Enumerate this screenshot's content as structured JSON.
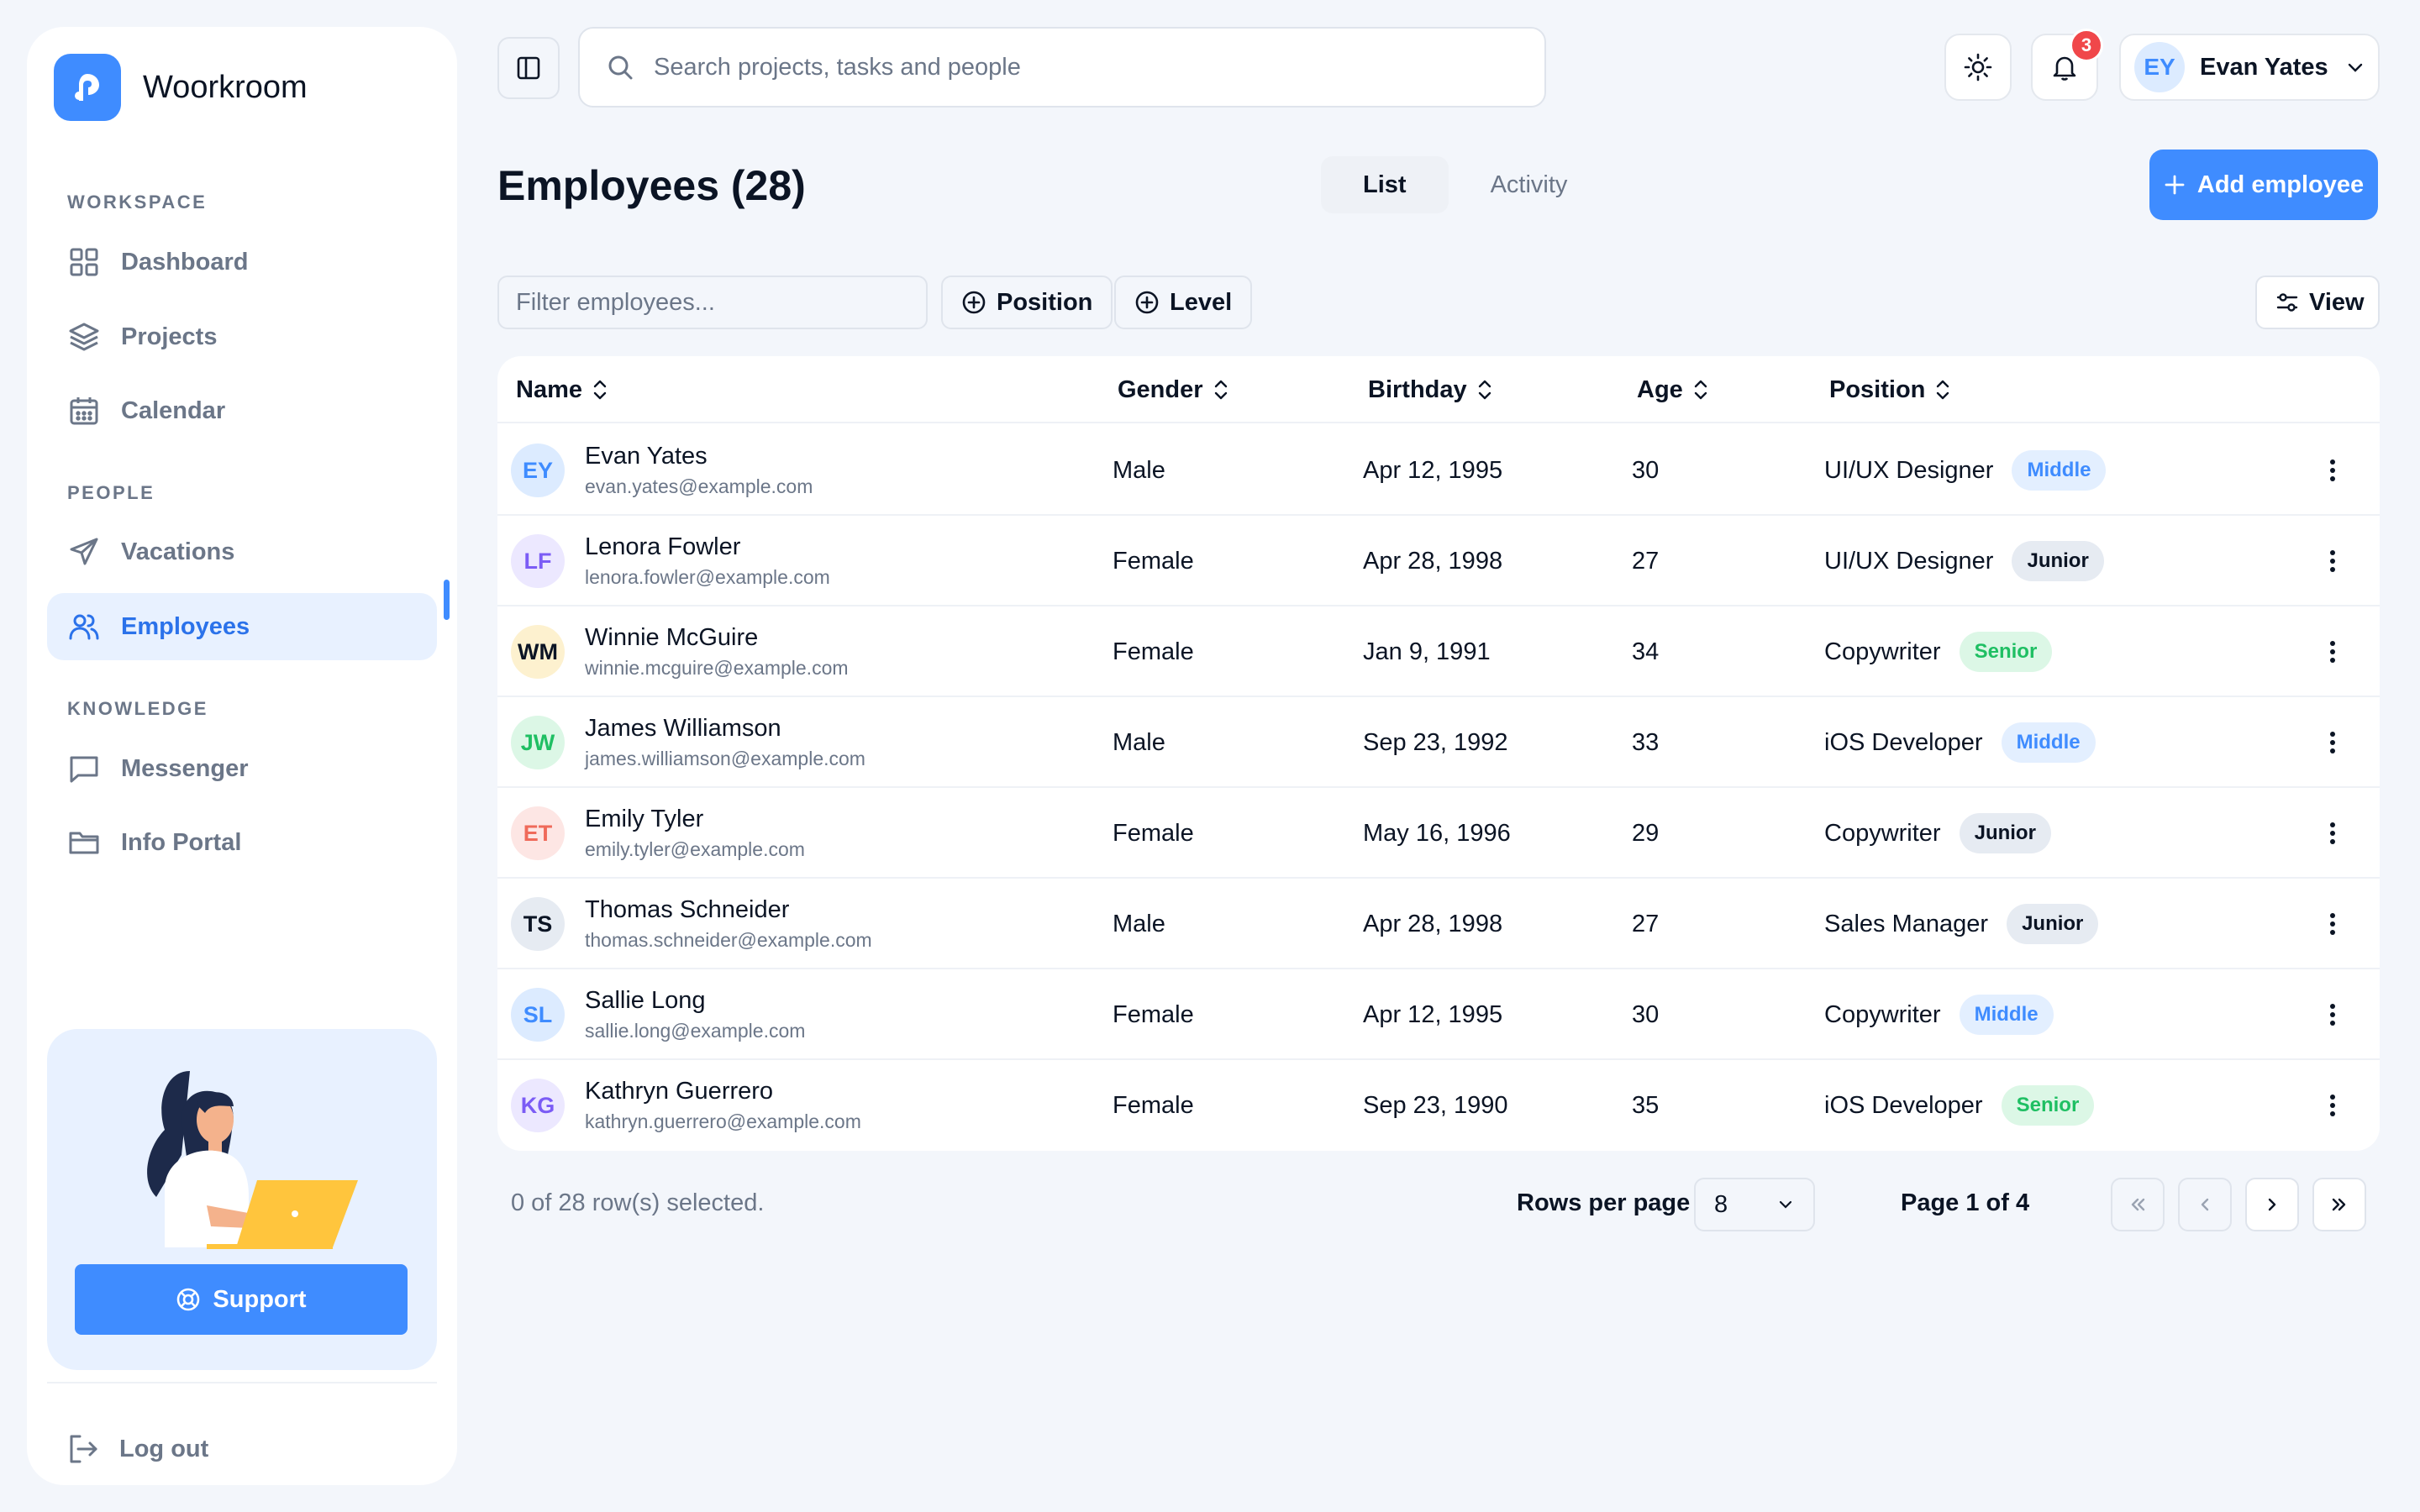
{
  "app": {
    "name": "Woorkroom"
  },
  "sidebar": {
    "sections": [
      {
        "label": "WORKSPACE"
      },
      {
        "label": "PEOPLE"
      },
      {
        "label": "KNOWLEDGE"
      }
    ],
    "items": [
      {
        "label": "Dashboard",
        "icon": "dashboard-icon"
      },
      {
        "label": "Projects",
        "icon": "layers-icon"
      },
      {
        "label": "Calendar",
        "icon": "calendar-icon"
      },
      {
        "label": "Vacations",
        "icon": "plane-icon"
      },
      {
        "label": "Employees",
        "icon": "users-icon",
        "active": true
      },
      {
        "label": "Messenger",
        "icon": "message-icon"
      },
      {
        "label": "Info Portal",
        "icon": "folder-icon"
      }
    ],
    "support_label": "Support",
    "logout_label": "Log out"
  },
  "header": {
    "search_placeholder": "Search projects, tasks and people",
    "notifications_count": "3",
    "user": {
      "initials": "EY",
      "name": "Evan Yates"
    }
  },
  "page": {
    "title": "Employees (28)",
    "tabs": [
      {
        "label": "List",
        "active": true
      },
      {
        "label": "Activity"
      }
    ],
    "add_label": "Add employee",
    "filter_placeholder": "Filter employees...",
    "filter_buttons": [
      "Position",
      "Level"
    ],
    "view_label": "View"
  },
  "table": {
    "columns": [
      "Name",
      "Gender",
      "Birthday",
      "Age",
      "Position"
    ],
    "rows": [
      {
        "initials": "EY",
        "name": "Evan Yates",
        "email": "evan.yates@example.com",
        "gender": "Male",
        "birthday": "Apr 12, 1995",
        "age": "30",
        "position": "UI/UX Designer",
        "level": "Middle"
      },
      {
        "initials": "LF",
        "name": "Lenora Fowler",
        "email": "lenora.fowler@example.com",
        "gender": "Female",
        "birthday": "Apr 28, 1998",
        "age": "27",
        "position": "UI/UX Designer",
        "level": "Junior"
      },
      {
        "initials": "WM",
        "name": "Winnie McGuire",
        "email": "winnie.mcguire@example.com",
        "gender": "Female",
        "birthday": "Jan 9, 1991",
        "age": "34",
        "position": "Copywriter",
        "level": "Senior"
      },
      {
        "initials": "JW",
        "name": "James Williamson",
        "email": "james.williamson@example.com",
        "gender": "Male",
        "birthday": "Sep 23, 1992",
        "age": "33",
        "position": "iOS Developer",
        "level": "Middle"
      },
      {
        "initials": "ET",
        "name": "Emily Tyler",
        "email": "emily.tyler@example.com",
        "gender": "Female",
        "birthday": "May 16, 1996",
        "age": "29",
        "position": "Copywriter",
        "level": "Junior"
      },
      {
        "initials": "TS",
        "name": "Thomas Schneider",
        "email": "thomas.schneider@example.com",
        "gender": "Male",
        "birthday": "Apr 28, 1998",
        "age": "27",
        "position": "Sales Manager",
        "level": "Junior"
      },
      {
        "initials": "SL",
        "name": "Sallie Long",
        "email": "sallie.long@example.com",
        "gender": "Female",
        "birthday": "Apr 12, 1995",
        "age": "30",
        "position": "Copywriter",
        "level": "Middle"
      },
      {
        "initials": "KG",
        "name": "Kathryn Guerrero",
        "email": "kathryn.guerrero@example.com",
        "gender": "Female",
        "birthday": "Sep 23, 1990",
        "age": "35",
        "position": "iOS Developer",
        "level": "Senior"
      }
    ]
  },
  "pagination": {
    "selected_text": "0 of 28 row(s) selected.",
    "rows_per_page_label": "Rows per page",
    "rows_per_page_value": "8",
    "page_text": "Page 1 of 4"
  },
  "colors": {
    "accent": "#3f8cff",
    "avatars": {
      "EY": {
        "bg": "#dcebff",
        "fg": "#3f8cff"
      },
      "LF": {
        "bg": "#ece8ff",
        "fg": "#7b5cf5"
      },
      "WM": {
        "bg": "#fdf1cf",
        "fg": "#0b1424"
      },
      "JW": {
        "bg": "#dcf7e6",
        "fg": "#1fbf63"
      },
      "ET": {
        "bg": "#fde6e4",
        "fg": "#ef6a5a"
      },
      "TS": {
        "bg": "#e6ebf2",
        "fg": "#0b1424"
      },
      "SL": {
        "bg": "#dcebff",
        "fg": "#3f8cff"
      },
      "KG": {
        "bg": "#ece8ff",
        "fg": "#7b5cf5"
      }
    },
    "levels": {
      "Middle": {
        "bg": "#e3efff",
        "fg": "#3f8cff"
      },
      "Junior": {
        "bg": "#e6ebf2",
        "fg": "#0b1424"
      },
      "Senior": {
        "bg": "#dcf7e6",
        "fg": "#1fbf63"
      }
    }
  }
}
